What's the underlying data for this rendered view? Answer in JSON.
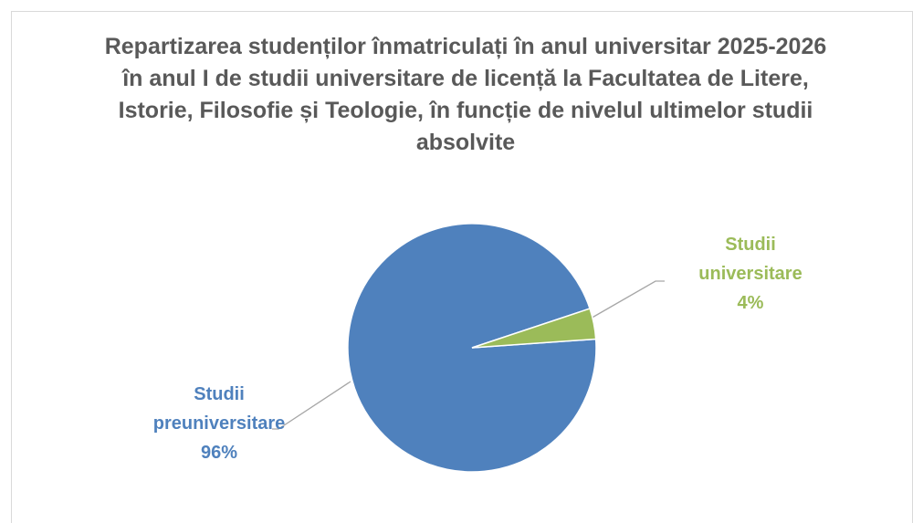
{
  "chart_data": {
    "type": "pie",
    "title": "Repartizarea studenților înmatriculați în anul universitar 2025-2026 în anul I de studii universitare de licență la Facultatea de Litere, Istorie, Filosofie și Teologie, în funcție de nivelul ultimelor studii absolvite",
    "categories": [
      "Studii preuniversitare",
      "Studii universitare"
    ],
    "values": [
      96,
      4
    ],
    "value_labels": [
      "96%",
      "4%"
    ],
    "colors": [
      "#4f81bd",
      "#9bbb59"
    ]
  }
}
